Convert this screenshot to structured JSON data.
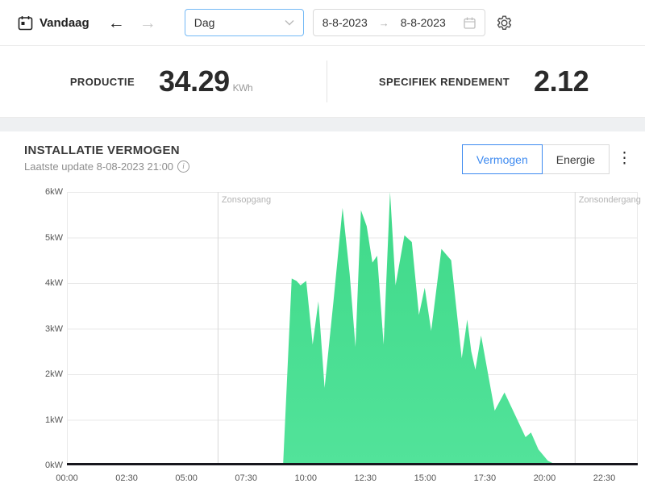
{
  "toolbar": {
    "today_label": "Vandaag",
    "back_arrow": "←",
    "forward_arrow": "→",
    "period_select": {
      "value": "Dag"
    },
    "date_from": "8-8-2023",
    "range_arrow": "→",
    "date_to": "8-8-2023"
  },
  "stats": {
    "production": {
      "label": "PRODUCTIE",
      "value": "34.29",
      "unit": "KWh"
    },
    "specific_yield": {
      "label": "SPECIFIEK RENDEMENT",
      "value": "2.12"
    }
  },
  "chart_section": {
    "title": "INSTALLATIE VERMOGEN",
    "last_update": "Laatste update  8-08-2023 21:00",
    "info_icon": "i",
    "toggle": {
      "power_label": "Vermogen",
      "energy_label": "Energie",
      "active": "Vermogen"
    },
    "kebab_icon": "⋮"
  },
  "chart_data": {
    "type": "area",
    "title": "INSTALLATIE VERMOGEN",
    "ylabel": "kW",
    "ylim": [
      0,
      6
    ],
    "xlim_hours": [
      0,
      23.9
    ],
    "grid": "horizontal",
    "legend_position": "none",
    "y_tick_labels": [
      "0kW",
      "1kW",
      "2kW",
      "3kW",
      "4kW",
      "5kW",
      "6kW"
    ],
    "y_tick_values": [
      0,
      1,
      2,
      3,
      4,
      5,
      6
    ],
    "x_tick_labels": [
      "00:00",
      "02:30",
      "05:00",
      "07:30",
      "10:00",
      "12:30",
      "15:00",
      "17:30",
      "20:00",
      "22:30"
    ],
    "x_tick_hours": [
      0,
      2.5,
      5,
      7.5,
      10,
      12.5,
      15,
      17.5,
      20,
      22.5
    ],
    "markers": [
      {
        "label": "Zonsopgang",
        "hour": 6.31
      },
      {
        "label": "Zonsondergang",
        "hour": 21.26
      }
    ],
    "series": [
      {
        "name": "Vermogen",
        "color": "#45de90",
        "color_top": "#3fd989",
        "color_bottom": "#52e39a",
        "x_hours": [
          9.05,
          9.27,
          9.41,
          9.61,
          9.78,
          10.02,
          10.29,
          10.53,
          10.79,
          11.16,
          11.54,
          11.84,
          12.08,
          12.31,
          12.55,
          12.79,
          12.99,
          13.26,
          13.53,
          13.76,
          14.13,
          14.44,
          14.74,
          14.98,
          15.25,
          15.68,
          16.09,
          16.53,
          16.76,
          16.93,
          17.1,
          17.34,
          17.91,
          18.32,
          18.86,
          19.2,
          19.43,
          19.74,
          20.14,
          20.54
        ],
        "values_kw": [
          0,
          2.5,
          4.1,
          4.05,
          3.95,
          4.05,
          2.65,
          3.6,
          1.7,
          3.6,
          5.65,
          4.2,
          2.6,
          5.6,
          5.25,
          4.45,
          4.6,
          2.65,
          6.0,
          3.95,
          5.05,
          4.9,
          3.3,
          3.9,
          2.95,
          4.75,
          4.5,
          2.35,
          3.2,
          2.5,
          2.1,
          2.85,
          1.2,
          1.6,
          1.0,
          0.62,
          0.72,
          0.35,
          0.1,
          0
        ]
      }
    ],
    "colors": {
      "grid": "#e9e9e9",
      "axis_baseline": "#17161d",
      "marker_line": "#d8d8d8",
      "accent_blue": "#3d8af0"
    }
  }
}
